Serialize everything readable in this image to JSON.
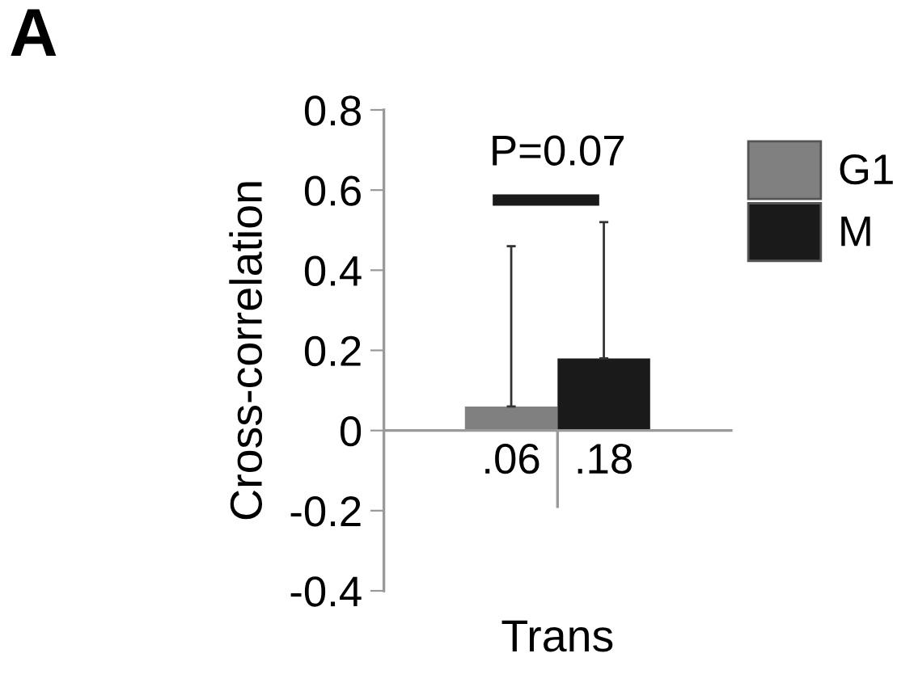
{
  "chart_data": {
    "type": "bar",
    "title": "A",
    "ylabel": "Cross-correlation",
    "categories": [
      "Trans"
    ],
    "series": [
      {
        "name": "G1",
        "color": "#808080",
        "values": [
          0.06
        ],
        "errors": [
          [
            0.06,
            0.46
          ]
        ],
        "value_labels": [
          ".06"
        ]
      },
      {
        "name": "M",
        "color": "#1a1a1a",
        "values": [
          0.18
        ],
        "errors": [
          [
            0.18,
            0.52
          ]
        ],
        "value_labels": [
          ".18"
        ]
      }
    ],
    "annotations": [
      "P=0.07"
    ],
    "ylim": [
      -0.4,
      0.8
    ],
    "yticks": [
      -0.4,
      -0.2,
      0,
      0.2,
      0.4,
      0.6,
      0.8
    ],
    "legend": "top right"
  }
}
